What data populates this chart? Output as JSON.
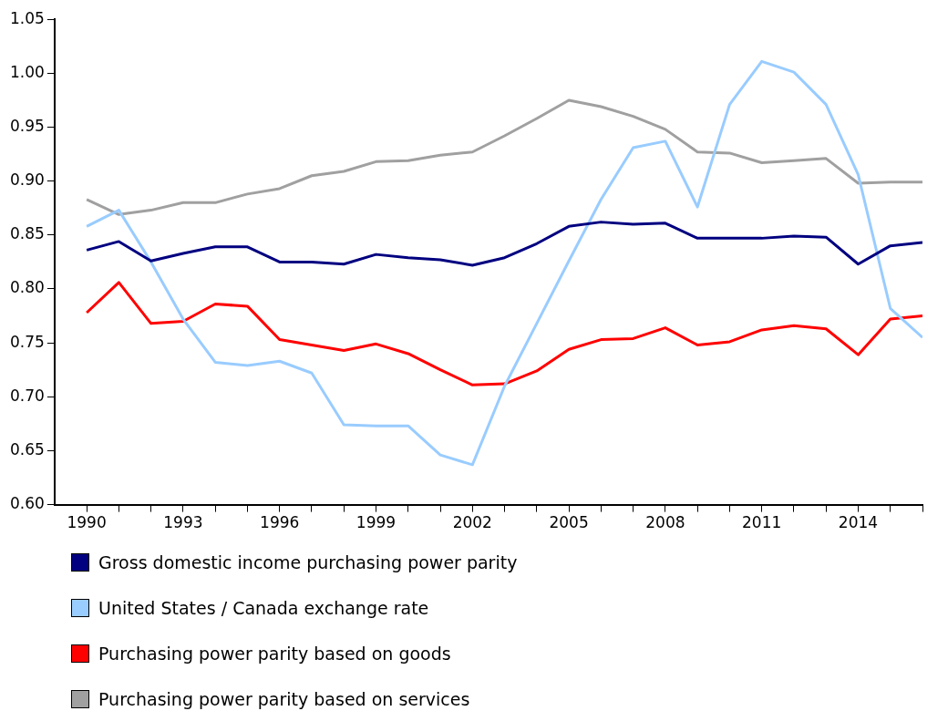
{
  "chart_data": {
    "type": "line",
    "x": [
      1990,
      1991,
      1992,
      1993,
      1994,
      1995,
      1996,
      1997,
      1998,
      1999,
      2000,
      2001,
      2002,
      2003,
      2004,
      2005,
      2006,
      2007,
      2008,
      2009,
      2010,
      2011,
      2012,
      2013,
      2014,
      2015,
      2016
    ],
    "xlim": [
      1989,
      2016
    ],
    "xticks": [
      1990,
      {
        "value": 1991,
        "label": null
      },
      {
        "value": 1992,
        "label": null
      },
      1993,
      {
        "value": 1994,
        "label": null
      },
      {
        "value": 1995,
        "label": null
      },
      1996,
      {
        "value": 1997,
        "label": null
      },
      {
        "value": 1998,
        "label": null
      },
      1999,
      {
        "value": 2000,
        "label": null
      },
      {
        "value": 2001,
        "label": null
      },
      2002,
      {
        "value": 2003,
        "label": null
      },
      {
        "value": 2004,
        "label": null
      },
      2005,
      {
        "value": 2006,
        "label": null
      },
      {
        "value": 2007,
        "label": null
      },
      2008,
      {
        "value": 2009,
        "label": null
      },
      {
        "value": 2010,
        "label": null
      },
      2011,
      {
        "value": 2012,
        "label": null
      },
      {
        "value": 2013,
        "label": null
      },
      2014,
      {
        "value": 2015,
        "label": null
      },
      {
        "value": 2016,
        "label": null
      }
    ],
    "ylim": [
      0.6,
      1.05
    ],
    "yticks": [
      {
        "value": 0.6,
        "label": "0.60"
      },
      {
        "value": 0.65,
        "label": "0.65"
      },
      {
        "value": 0.7,
        "label": "0.70"
      },
      {
        "value": 0.75,
        "label": "0.75"
      },
      {
        "value": 0.8,
        "label": "0.80"
      },
      {
        "value": 0.85,
        "label": "0.85"
      },
      {
        "value": 0.9,
        "label": "0.90"
      },
      {
        "value": 0.95,
        "label": "0.95"
      },
      {
        "value": 1.0,
        "label": "1.00"
      },
      {
        "value": 1.05,
        "label": "1.05"
      }
    ],
    "grid": false,
    "legend": "bottom",
    "marker": "none",
    "line_style": "solid",
    "series": [
      {
        "name": "Gross domestic income purchasing power parity",
        "color": "#000080",
        "values": [
          0.836,
          0.844,
          0.826,
          0.833,
          0.839,
          0.839,
          0.825,
          0.825,
          0.823,
          0.832,
          0.829,
          0.827,
          0.822,
          0.829,
          0.842,
          0.858,
          0.862,
          0.86,
          0.861,
          0.847,
          0.847,
          0.847,
          0.849,
          0.848,
          0.823,
          0.84,
          0.843
        ]
      },
      {
        "name": "United States / Canada exchange rate",
        "color": "#99ccff",
        "values": [
          0.858,
          0.873,
          0.825,
          0.772,
          0.732,
          0.729,
          0.733,
          0.722,
          0.674,
          0.673,
          0.673,
          0.646,
          0.637,
          0.71,
          0.768,
          0.826,
          0.883,
          0.931,
          0.937,
          0.876,
          0.971,
          1.011,
          1.001,
          0.971,
          0.906,
          0.782,
          0.755
        ]
      },
      {
        "name": "Purchasing power parity based on goods",
        "color": "#ff0000",
        "values": [
          0.778,
          0.806,
          0.768,
          0.77,
          0.786,
          0.784,
          0.753,
          0.748,
          0.743,
          0.749,
          0.74,
          0.725,
          0.711,
          0.712,
          0.724,
          0.744,
          0.753,
          0.754,
          0.764,
          0.748,
          0.751,
          0.762,
          0.766,
          0.763,
          0.739,
          0.772,
          0.775
        ]
      },
      {
        "name": "Purchasing power parity based on services",
        "color": "#a0a0a0",
        "values": [
          0.883,
          0.869,
          0.873,
          0.88,
          0.88,
          0.888,
          0.893,
          0.905,
          0.909,
          0.918,
          0.919,
          0.924,
          0.927,
          0.942,
          0.958,
          0.975,
          0.969,
          0.96,
          0.948,
          0.927,
          0.926,
          0.917,
          0.919,
          0.921,
          0.898,
          0.899,
          0.899
        ]
      }
    ]
  }
}
